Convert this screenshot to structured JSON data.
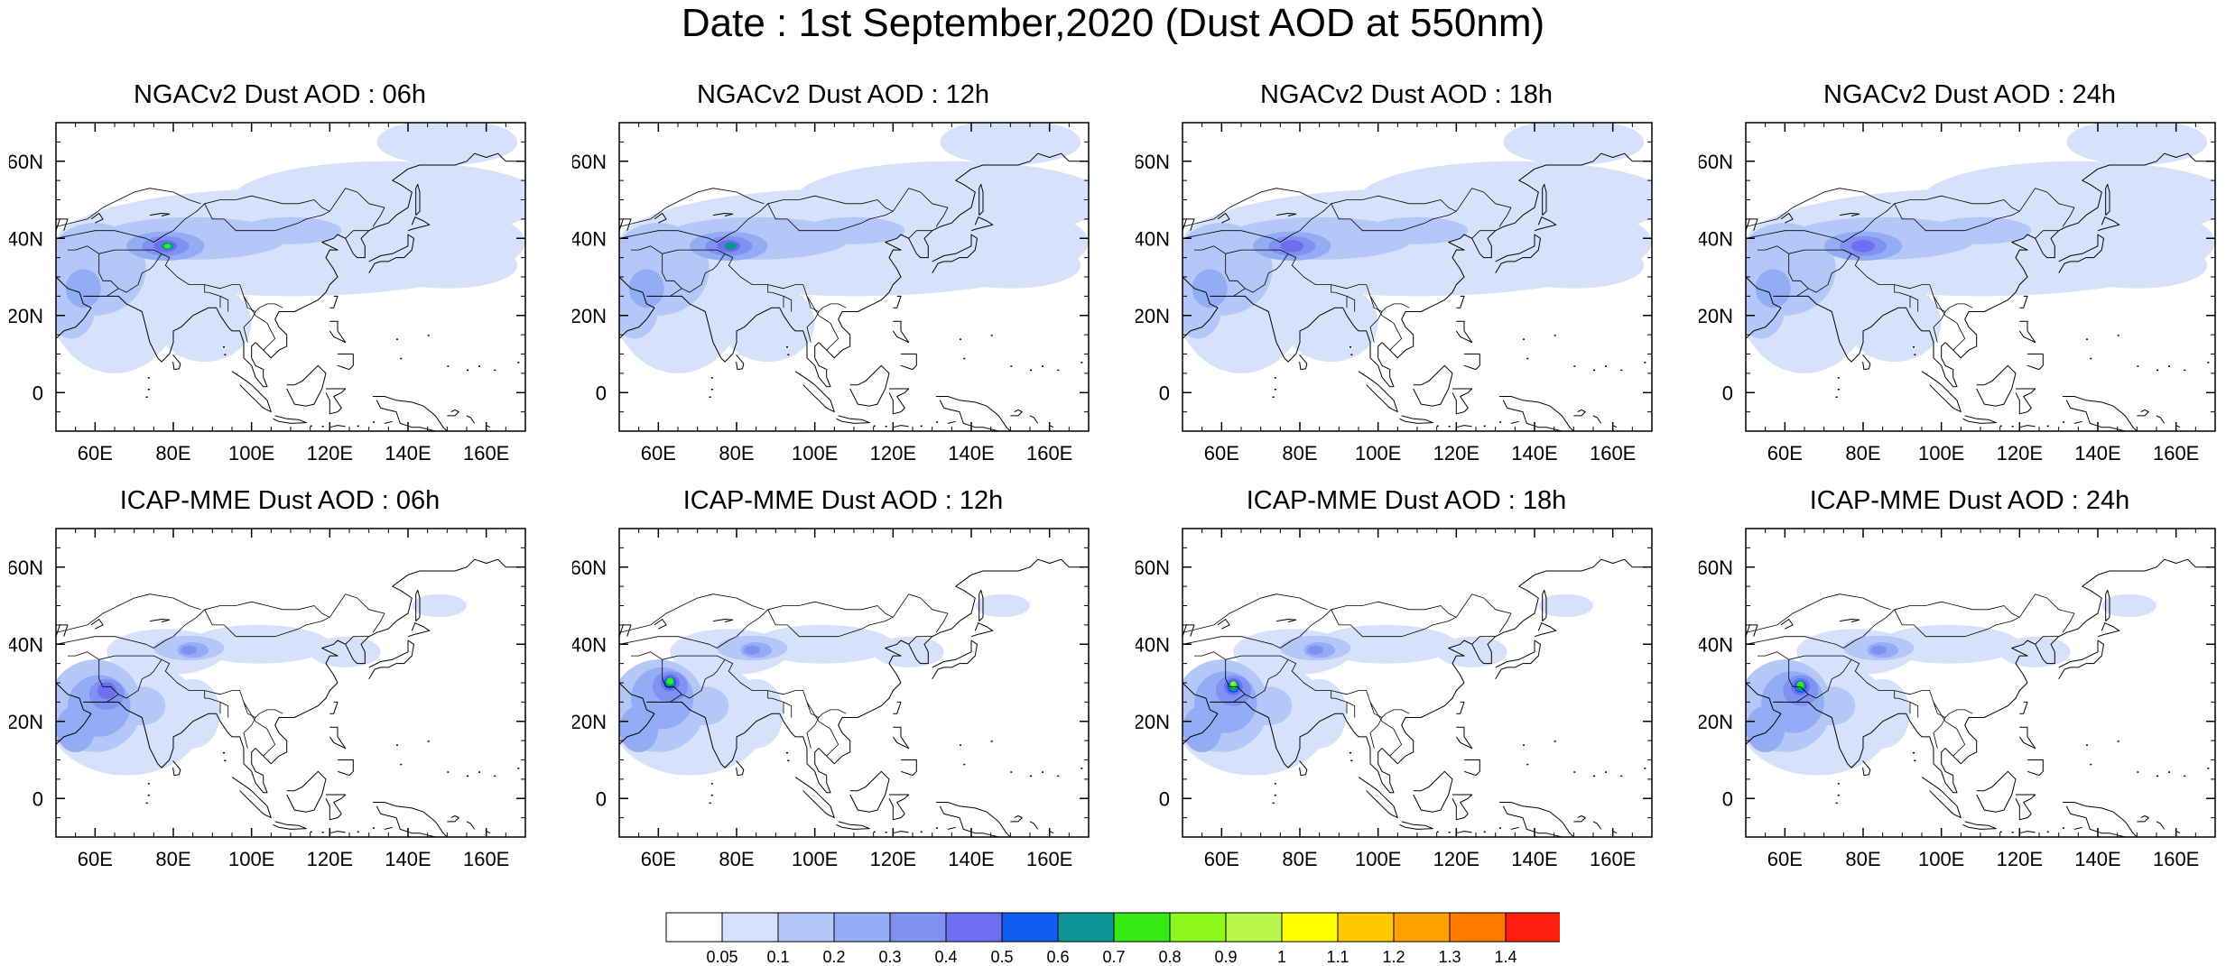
{
  "title": "Date : 1st September,2020 (Dust AOD at 550nm)",
  "map": {
    "lon_range": [
      50,
      170
    ],
    "lat_range": [
      -10,
      70
    ],
    "lon_ticks": [
      60,
      80,
      100,
      120,
      140,
      160
    ],
    "lon_tick_labels": [
      "60E",
      "80E",
      "100E",
      "120E",
      "140E",
      "160E"
    ],
    "lat_ticks": [
      60,
      40,
      20,
      0
    ],
    "lat_tick_labels": [
      "60N",
      "40N",
      "20N",
      "0"
    ]
  },
  "panels": [
    {
      "title": "NGACv2 Dust AOD : 06h",
      "model": "NGACv2",
      "hour": "06h",
      "hotspot": {
        "lon": 78,
        "lat": 38,
        "max_aod": 0.8
      }
    },
    {
      "title": "NGACv2 Dust AOD : 12h",
      "model": "NGACv2",
      "hour": "12h",
      "hotspot": {
        "lon": 78,
        "lat": 38,
        "max_aod": 0.7
      }
    },
    {
      "title": "NGACv2 Dust AOD : 18h",
      "model": "NGACv2",
      "hour": "18h",
      "hotspot": {
        "lon": 78,
        "lat": 38,
        "max_aod": 0.5
      }
    },
    {
      "title": "NGACv2 Dust AOD : 24h",
      "model": "NGACv2",
      "hour": "24h",
      "hotspot": {
        "lon": 80,
        "lat": 38,
        "max_aod": 0.4
      }
    },
    {
      "title": "ICAP-MME Dust AOD : 06h",
      "model": "ICAP-MME",
      "hour": "06h",
      "hotspot": {
        "lon": 63,
        "lat": 28,
        "max_aod": 0.5
      }
    },
    {
      "title": "ICAP-MME Dust AOD : 12h",
      "model": "ICAP-MME",
      "hour": "12h",
      "hotspot": {
        "lon": 63,
        "lat": 30,
        "max_aod": 0.8
      }
    },
    {
      "title": "ICAP-MME Dust AOD : 18h",
      "model": "ICAP-MME",
      "hour": "18h",
      "hotspot": {
        "lon": 63,
        "lat": 29,
        "max_aod": 0.9
      }
    },
    {
      "title": "ICAP-MME Dust AOD : 24h",
      "model": "ICAP-MME",
      "hour": "24h",
      "hotspot": {
        "lon": 64,
        "lat": 29,
        "max_aod": 0.8
      }
    }
  ],
  "colorbar": {
    "labels": [
      "0.05",
      "0.1",
      "0.2",
      "0.3",
      "0.4",
      "0.5",
      "0.6",
      "0.7",
      "0.8",
      "0.9",
      "1",
      "1.1",
      "1.2",
      "1.3",
      "1.4"
    ],
    "colors": [
      "#ffffff",
      "#d6e2fb",
      "#b3c7f8",
      "#92acf5",
      "#7f92f2",
      "#6e6ff0",
      "#0f5cf0",
      "#0a9494",
      "#36ea15",
      "#8cf719",
      "#b9f64a",
      "#ffff00",
      "#ffc800",
      "#ffa000",
      "#ff7800",
      "#ff1e0f"
    ]
  }
}
